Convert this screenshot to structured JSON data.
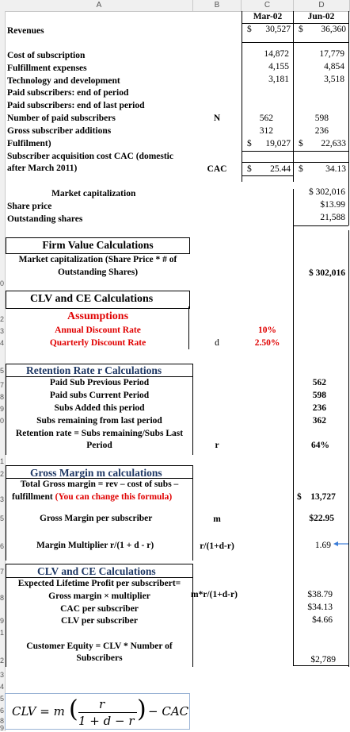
{
  "columns": {
    "a": "A",
    "b": "B",
    "c": "C",
    "d": "D"
  },
  "row_numbers": [
    "0",
    "2",
    "3",
    "4",
    "5",
    "7",
    "8",
    "9",
    "0",
    "1",
    "2",
    "3",
    "5",
    "6",
    "7",
    "8",
    "9",
    "1",
    "2",
    "3",
    "4",
    "5",
    "6",
    "8",
    "9"
  ],
  "periods": {
    "c": "Mar-02",
    "d": "Jun-02"
  },
  "revenues": {
    "label": "Revenues",
    "c_cur": "$",
    "c": "30,527",
    "d_cur": "$",
    "d": "36,360"
  },
  "costs": [
    {
      "label": "Cost of subscription",
      "c": "14,872",
      "d": "17,779"
    },
    {
      "label": "Fulfillment expenses",
      "c": "4,155",
      "d": "4,854"
    },
    {
      "label": "Technology and development",
      "c": "3,181",
      "d": "3,518"
    },
    {
      "label": "Paid subscribers: end of period",
      "c": "",
      "d": ""
    },
    {
      "label": "Paid subscribers: end of last period",
      "c": "",
      "d": ""
    },
    {
      "label": "Number of paid subscribers",
      "b": "N",
      "c": "562",
      "d": "598"
    },
    {
      "label": "Gross subscriber additions",
      "c": "312",
      "d": "236"
    },
    {
      "label": "Fulfilment)",
      "c_cur": "$",
      "c": "19,027",
      "d_cur": "$",
      "d": "22,633"
    }
  ],
  "cac": {
    "label1": "Subscriber acquisition cost CAC (domestic",
    "label2": "after March 2011)",
    "b": "CAC",
    "c_cur": "$",
    "c": "25.44",
    "d_cur": "$",
    "d": "34.13"
  },
  "market": {
    "label": "Market capitalization",
    "d": "$ 302,016",
    "share_label": "Share price",
    "share": "$13.99",
    "out_label": "Outstanding shares",
    "out": "21,588"
  },
  "firm": {
    "title": "Firm Value Calculations",
    "label1": "Market capitalization (Share Price * # of",
    "label2": "Outstanding Shares)",
    "d": "$ 302,016"
  },
  "clv_header": "CLV and CE Calculations",
  "assumptions": {
    "title": "Assumptions",
    "annual_label": "Annual Discount Rate",
    "annual": "10%",
    "quarterly_label": "Quarterly Discount Rate",
    "b": "d",
    "quarterly": "2.50%"
  },
  "retention": {
    "title": "Retention Rate r Calculations",
    "prev_label": "Paid Sub Previous Period",
    "prev": "562",
    "cur_label": "Paid subs Current Period",
    "cur": "598",
    "added_label": "Subs Added this period",
    "added": "236",
    "remain_label": "Subs remaining from last period",
    "remain": "362",
    "rate_label1": "Retention rate = Subs remaining/Subs Last",
    "rate_label2": "Period",
    "b": "r",
    "rate": "64%"
  },
  "margin": {
    "title": "Gross Margin m calculations",
    "total_label1": "Total Gross margin = rev – cost of subs –",
    "total_label2": "fulfillment",
    "total_note": "(You can change this formula)",
    "total": "$    13,727",
    "per_label": "Gross Margin per subscriber",
    "b": "m",
    "per": "$22.95",
    "mult_label": "Margin Multiplier r/(1 + d - r)",
    "mult_b": "r/(1+d-r)",
    "mult": "1.69"
  },
  "clv": {
    "title": "CLV and CE Calculations",
    "exp_label1": "Expected Lifetime Profit per subscribert=",
    "exp_label2": "Gross margin × multiplier",
    "exp_b": "m*r/(1+d-r)",
    "exp": "$38.79",
    "cac_label": "CAC per subscriber",
    "cac": "$34.13",
    "clv_label": "CLV per subscriber",
    "clv": "$4.66",
    "ce_label1": "Customer Equity = CLV * Number of",
    "ce_label2": "Subscribers",
    "ce": "$2,789"
  },
  "formula": {
    "lhs": "CLV = m",
    "num": "r",
    "den": "1 + d − r",
    "rhs": "− CAC"
  },
  "colors": {
    "red": "#e00000",
    "navy": "#1f3864",
    "arrow": "#3b7dd8"
  }
}
